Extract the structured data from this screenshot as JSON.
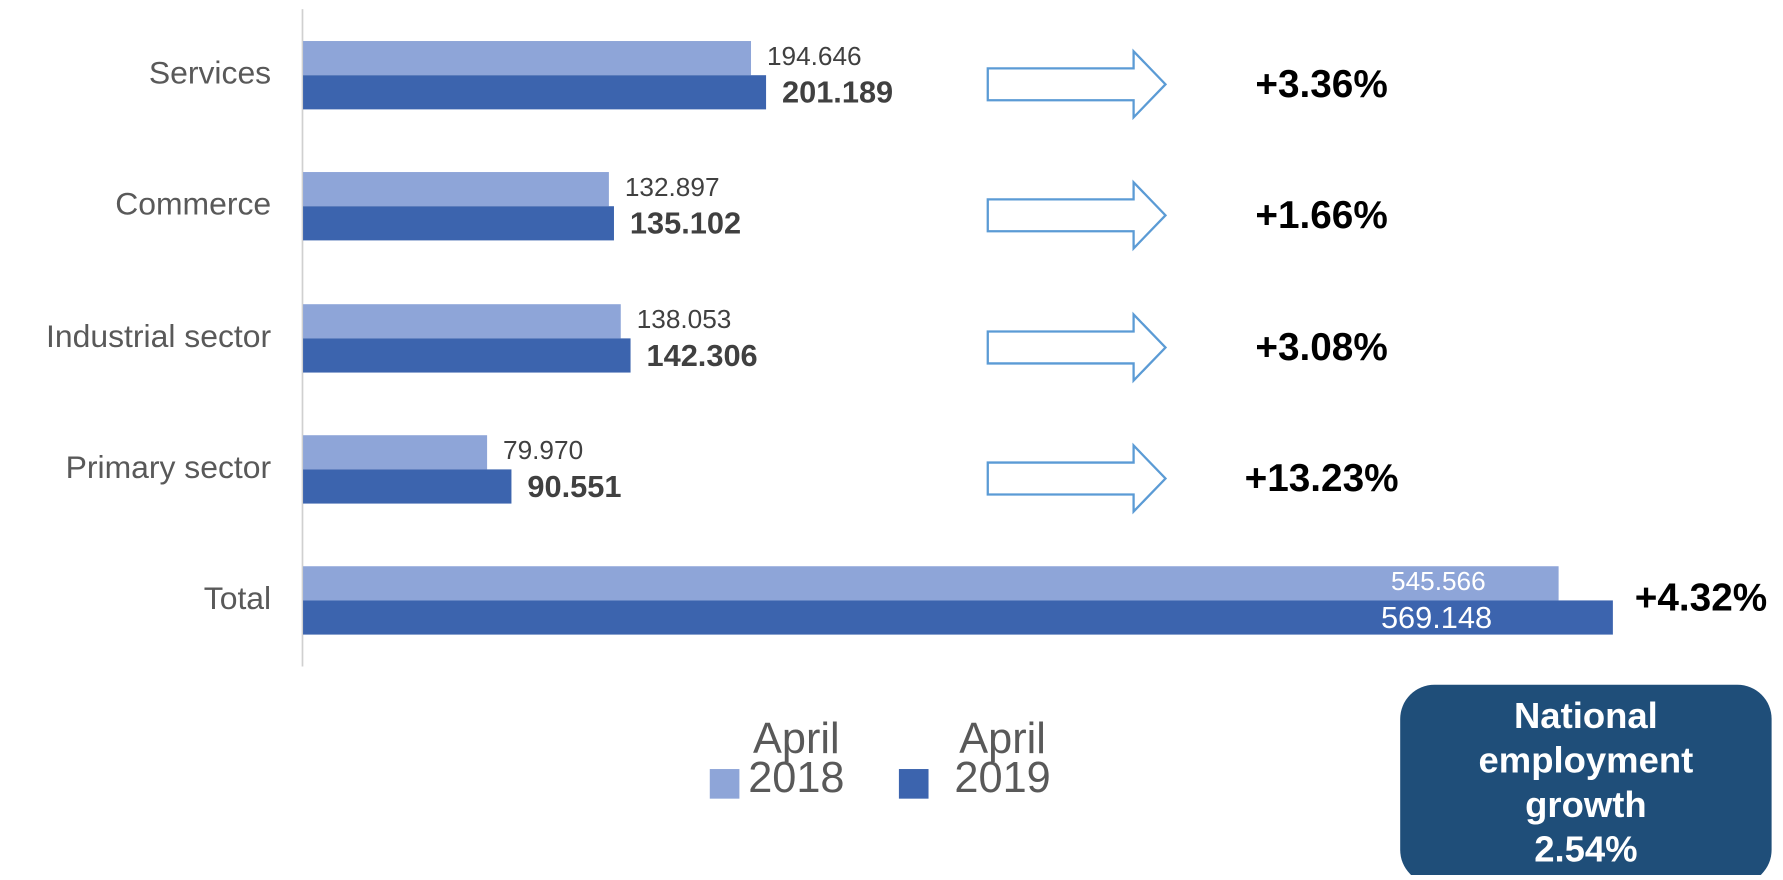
{
  "chart_data": {
    "type": "bar",
    "orientation": "horizontal",
    "categories": [
      "Services",
      "Commerce",
      "Industrial sector",
      "Primary sector",
      "Total"
    ],
    "series": [
      {
        "name": "April 2018",
        "color": "#8ea5d8",
        "values": [
          194.646,
          132.897,
          138.053,
          79.97,
          545.566
        ],
        "value_labels": [
          "194.646",
          "132.897",
          "138.053",
          "79.970",
          "545.566"
        ]
      },
      {
        "name": "April 2019",
        "color": "#3c64ae",
        "values": [
          201.189,
          135.102,
          142.306,
          90.551,
          569.148
        ],
        "value_labels": [
          "201.189",
          "135.102",
          "142.306",
          "90.551",
          "569.148"
        ]
      }
    ],
    "xlim": [
      0,
      600
    ],
    "growth_labels": [
      "+3.36%",
      "+1.66%",
      "+3.08%",
      "+13.23%",
      "+4.32%"
    ],
    "annotation": "National employment growth 2.54%"
  }
}
